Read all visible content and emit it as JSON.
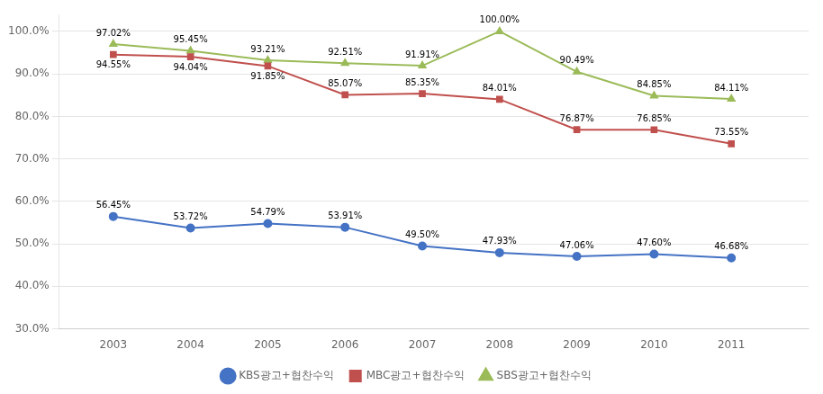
{
  "chart_data": {
    "type": "line",
    "x": [
      2003,
      2004,
      2005,
      2006,
      2007,
      2008,
      2009,
      2010,
      2011
    ],
    "xlim": [
      2002.3,
      2012.0
    ],
    "xticks": [
      2003,
      2004,
      2005,
      2006,
      2007,
      2008,
      2009,
      2010,
      2011
    ],
    "ylim": [
      30.0,
      104.0
    ],
    "yticks": [
      {
        "value": 30.0,
        "label": "30.0%"
      },
      {
        "value": 40.0,
        "label": "40.0%"
      },
      {
        "value": 50.0,
        "label": "50.0%"
      },
      {
        "value": 60.0,
        "label": "60.0%"
      },
      {
        "value": 70.0,
        "label": "70.0%"
      },
      {
        "value": 80.0,
        "label": "80.0%"
      },
      {
        "value": 90.0,
        "label": "90.0%"
      },
      {
        "value": 100.0,
        "label": "100.0%"
      }
    ],
    "grid": "y",
    "legend": "bottom",
    "data_labels": true,
    "series": [
      {
        "name": "KBS광고+협찬수익",
        "color": "#4472C4",
        "marker": "circle",
        "values": [
          56.45,
          53.72,
          54.79,
          53.91,
          49.5,
          47.93,
          47.06,
          47.6,
          46.68
        ],
        "value_labels": [
          "56.45%",
          "53.72%",
          "54.79%",
          "53.91%",
          "49.50%",
          "47.93%",
          "47.06%",
          "47.60%",
          "46.68%"
        ]
      },
      {
        "name": "MBC광고+협찬수익",
        "color": "#C0504D",
        "marker": "square",
        "values": [
          94.55,
          94.04,
          91.85,
          85.07,
          85.35,
          84.01,
          76.87,
          76.85,
          73.55
        ],
        "value_labels": [
          "94.55%",
          "94.04%",
          "91.85%",
          "85.07%",
          "85.35%",
          "84.01%",
          "76.87%",
          "76.85%",
          "73.55%"
        ]
      },
      {
        "name": "SBS광고+협찬수익",
        "color": "#9BBB59",
        "marker": "triangle",
        "values": [
          97.02,
          95.45,
          93.21,
          92.51,
          91.91,
          100.0,
          90.49,
          84.85,
          84.11
        ],
        "value_labels": [
          "97.02%",
          "95.45%",
          "93.21%",
          "92.51%",
          "91.91%",
          "100.00%",
          "90.49%",
          "84.85%",
          "84.11%"
        ]
      }
    ]
  }
}
